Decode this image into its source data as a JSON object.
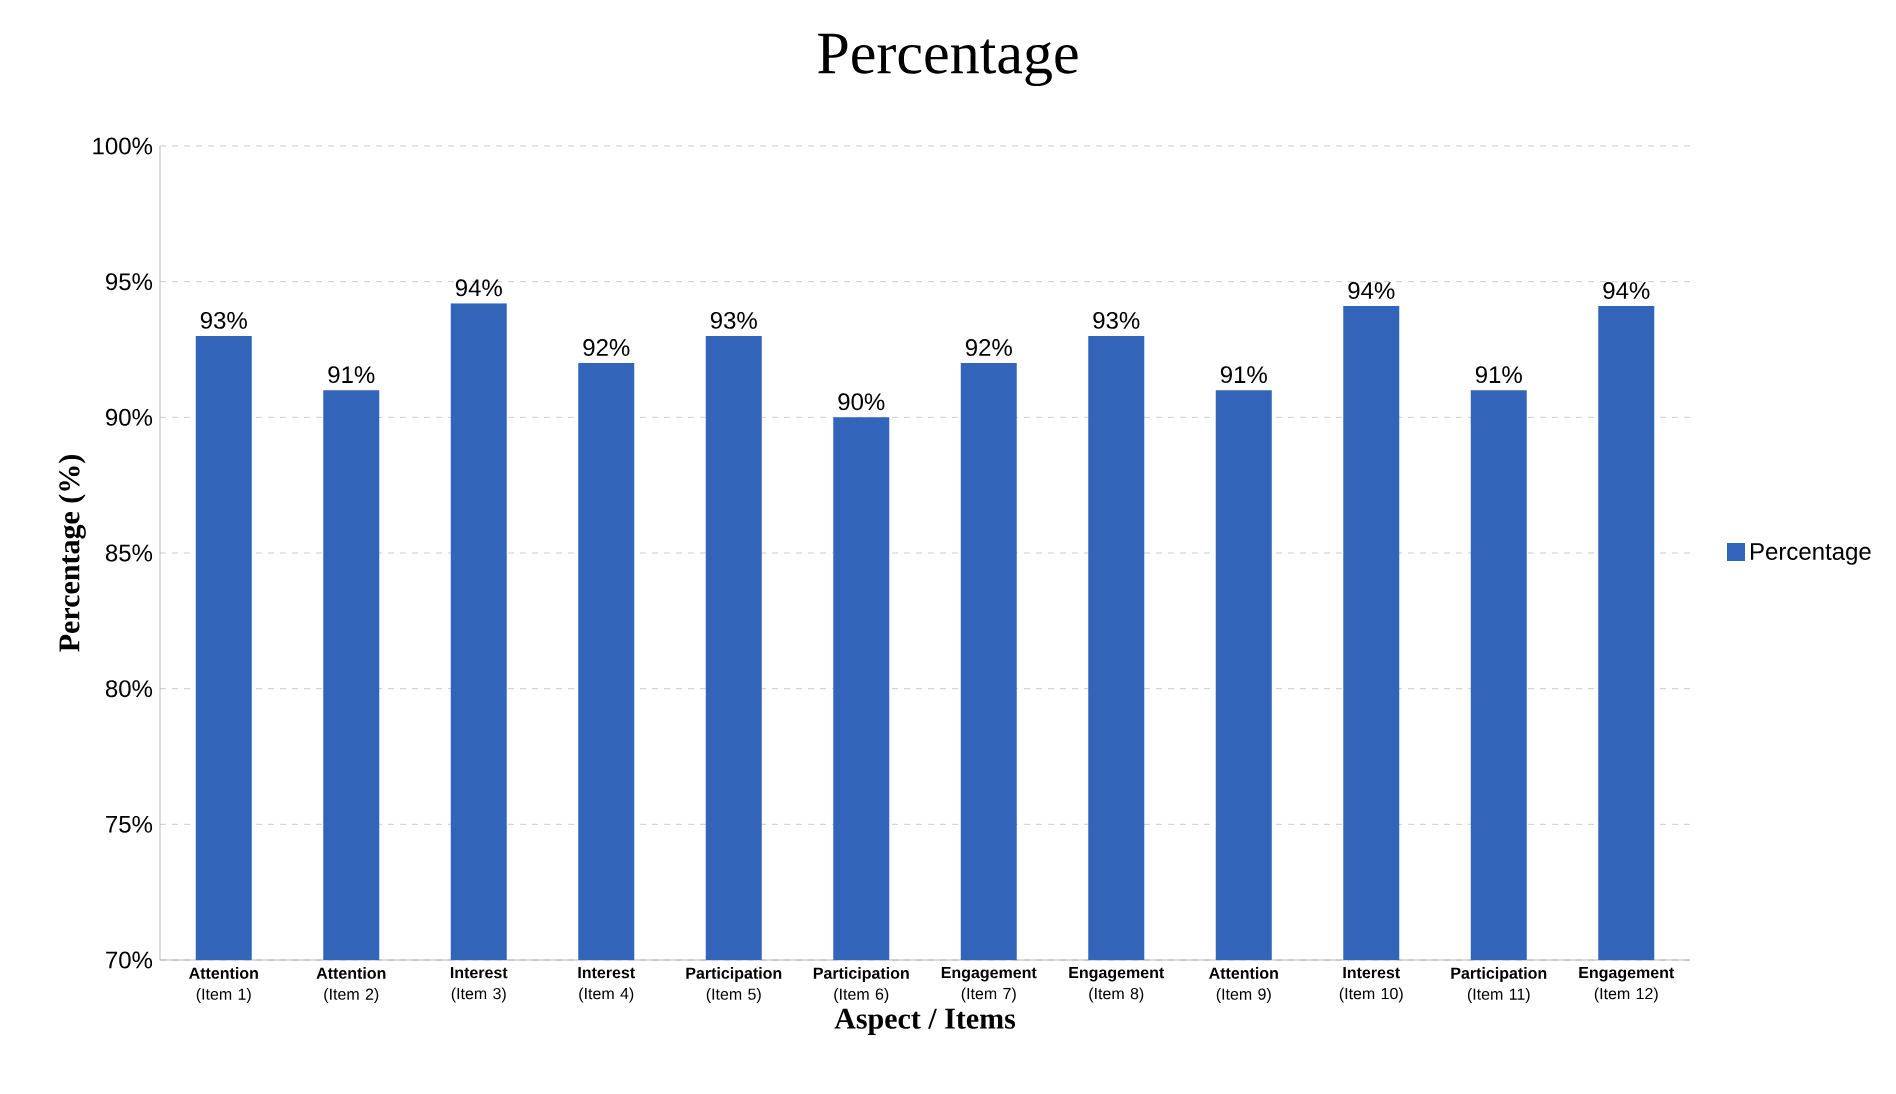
{
  "chart_data": {
    "type": "bar",
    "title": "Percentage",
    "xlabel": "Aspect / Items",
    "ylabel": "Percentage (%)",
    "categories": [
      "**Attention** (Item 1)",
      "**Attention** (Item 2)",
      "**Interest** (Item 3)",
      "**Interest** (Item 4)",
      "**Participation** (Item 5)",
      "**Participation** (Item 6)",
      "**Engagement** (Item 7)",
      "**Engagement** (Item 8)",
      "**Attention** (Item 9)",
      "**Interest** (Item 10)",
      "**Participation** (Item 11)",
      "**Engagement** (Item 12)"
    ],
    "series": [
      {
        "name": "Percentage",
        "color": "#3265b9",
        "values": [
          93,
          91,
          94.2,
          92,
          93,
          90,
          92,
          93,
          91,
          94.1,
          91,
          94.1
        ],
        "value_labels": [
          "93%",
          "91%",
          "94%",
          "92%",
          "93%",
          "90%",
          "92%",
          "93%",
          "91%",
          "94%",
          "91%",
          "94%"
        ]
      }
    ],
    "ylim": [
      70,
      100
    ],
    "yticks": [
      {
        "value": 70,
        "label": "70%"
      },
      {
        "value": 75,
        "label": "75%"
      },
      {
        "value": 80,
        "label": "80%"
      },
      {
        "value": 85,
        "label": "85%"
      },
      {
        "value": 90,
        "label": "90%"
      },
      {
        "value": 95,
        "label": "95%"
      },
      {
        "value": 100,
        "label": "100%"
      }
    ],
    "grid": "y",
    "legend": "right"
  }
}
